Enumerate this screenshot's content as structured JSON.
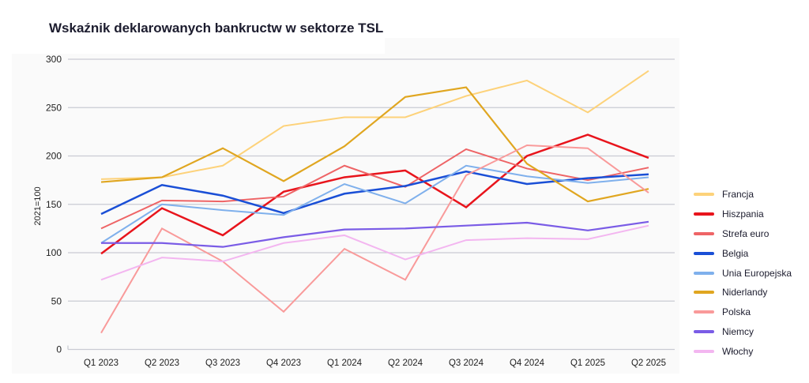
{
  "chart_data": {
    "type": "line",
    "title": "Wskaźnik deklarowanych bankructw w sektorze TSL",
    "xlabel": "",
    "ylabel": "2021=100",
    "ylim": [
      0,
      300
    ],
    "yticks": [
      "0",
      "50",
      "100",
      "150",
      "200",
      "250",
      "300"
    ],
    "categories": [
      "Q1 2023",
      "Q2 2023",
      "Q3 2023",
      "Q4 2023",
      "Q1 2024",
      "Q2 2024",
      "Q3 2024",
      "Q4 2024",
      "Q1 2025",
      "Q2 2025"
    ],
    "grid": true,
    "legend_position": "right",
    "series": [
      {
        "name": "Francja",
        "color": "#fdd27a",
        "width": 2,
        "values": [
          176,
          178,
          190,
          231,
          240,
          240,
          262,
          278,
          245,
          288
        ]
      },
      {
        "name": "Hiszpania",
        "color": "#e8141c",
        "width": 2.5,
        "values": [
          99,
          146,
          118,
          163,
          178,
          185,
          147,
          200,
          222,
          198
        ]
      },
      {
        "name": "Strefa euro",
        "color": "#ee6466",
        "width": 2,
        "values": [
          125,
          154,
          153,
          158,
          190,
          168,
          207,
          187,
          175,
          188
        ]
      },
      {
        "name": "Belgia",
        "color": "#1a4fd6",
        "width": 2.5,
        "values": [
          140,
          170,
          159,
          141,
          161,
          169,
          184,
          171,
          177,
          181
        ]
      },
      {
        "name": "Unia Europejska",
        "color": "#7fb0ec",
        "width": 2,
        "values": [
          110,
          150,
          144,
          139,
          171,
          151,
          190,
          179,
          172,
          178
        ]
      },
      {
        "name": "Niderlandy",
        "color": "#e0a620",
        "width": 2.2,
        "values": [
          173,
          178,
          208,
          174,
          210,
          261,
          271,
          192,
          153,
          166
        ]
      },
      {
        "name": "Polska",
        "color": "#f99a9a",
        "width": 2,
        "values": [
          17,
          125,
          91,
          39,
          104,
          72,
          180,
          211,
          208,
          162
        ]
      },
      {
        "name": "Niemcy",
        "color": "#7a5ce6",
        "width": 2.2,
        "values": [
          110,
          110,
          106,
          116,
          124,
          125,
          128,
          131,
          123,
          132
        ]
      },
      {
        "name": "Włochy",
        "color": "#f3b6f0",
        "width": 2,
        "values": [
          72,
          95,
          91,
          110,
          118,
          93,
          113,
          115,
          114,
          128
        ]
      }
    ]
  }
}
